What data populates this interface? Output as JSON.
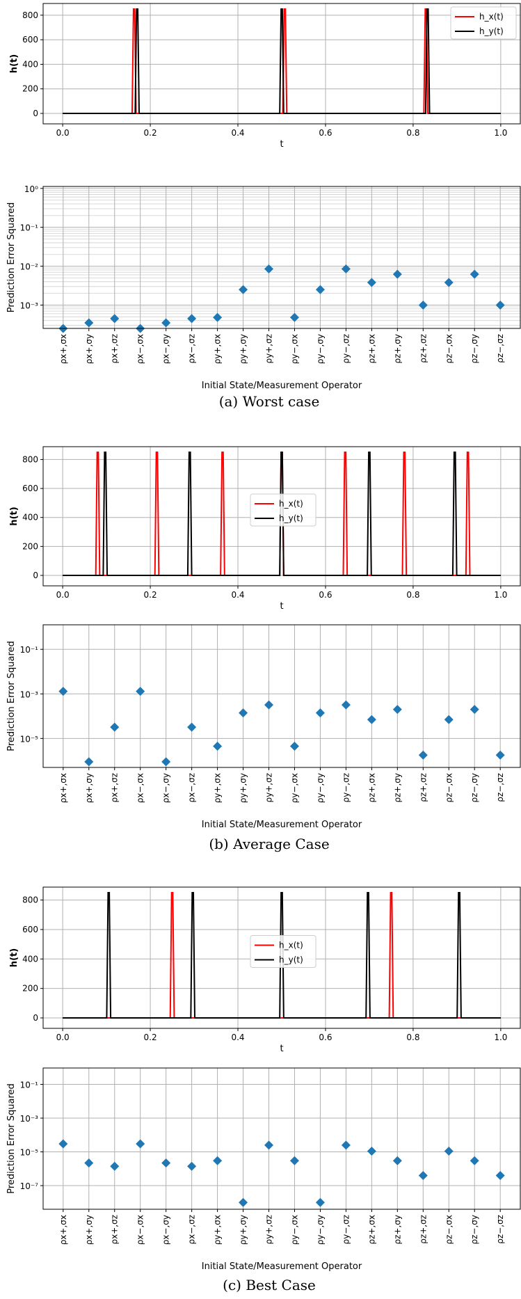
{
  "colors": {
    "hx": "#ff0000",
    "hy": "#000000",
    "marker": "#1f77b4",
    "grid": "#b0b0b0"
  },
  "captions": [
    "(a) Worst case",
    "(b) Average Case",
    "(c) Best Case"
  ],
  "operators": [
    "ρx+,σx",
    "ρx+,σy",
    "ρx+,σz",
    "ρx−,σx",
    "ρx−,σy",
    "ρx−,σz",
    "ρy+,σx",
    "ρy+,σy",
    "ρy+,σz",
    "ρy−,σx",
    "ρy−,σy",
    "ρy−,σz",
    "ρz+,σx",
    "ρz+,σy",
    "ρz+,σz",
    "ρz−,σx",
    "ρz−,σy",
    "ρz−,σz"
  ],
  "chart_data": [
    {
      "type": "line",
      "xlabel": "t",
      "ylabel": "h(t)",
      "xlim": [
        0.0,
        1.0
      ],
      "ylim": [
        0,
        850
      ],
      "xticks": [
        "0.0",
        "0.2",
        "0.4",
        "0.6",
        "0.8",
        "1.0"
      ],
      "yticks": [
        "0",
        "200",
        "400",
        "600",
        "800"
      ],
      "legend": "top-right",
      "series": [
        {
          "name": "h_x(t)",
          "peaks": [
            0.163,
            0.507,
            0.829
          ],
          "peak_value": 850
        },
        {
          "name": "h_y(t)",
          "peaks": [
            0.17,
            0.5,
            0.833
          ],
          "peak_value": 850
        }
      ]
    },
    {
      "type": "scatter",
      "xlabel": "Initial State/Measurement Operator",
      "ylabel": "Prediction Error Squared",
      "yscale": "log",
      "ylim_exp": [
        -3.6,
        0.05
      ],
      "yticks": [
        "10⁻³",
        "10⁻²",
        "10⁻¹",
        "10⁰"
      ],
      "ytick_exps": [
        -3,
        -2,
        -1,
        0
      ],
      "minor_grid": true,
      "values": [
        0.00025,
        0.00035,
        0.00045,
        0.00025,
        0.00035,
        0.00045,
        0.00048,
        0.0025,
        0.0085,
        0.00048,
        0.0025,
        0.0085,
        0.0038,
        0.0062,
        0.001,
        0.0038,
        0.0062,
        0.001
      ]
    },
    {
      "type": "line",
      "xlabel": "t",
      "ylabel": "h(t)",
      "xlim": [
        0.0,
        1.0
      ],
      "ylim": [
        0,
        850
      ],
      "xticks": [
        "0.0",
        "0.2",
        "0.4",
        "0.6",
        "0.8",
        "1.0"
      ],
      "yticks": [
        "0",
        "200",
        "400",
        "600",
        "800"
      ],
      "legend": "center",
      "series": [
        {
          "name": "h_x(t)",
          "peaks": [
            0.08,
            0.215,
            0.365,
            0.5,
            0.645,
            0.78,
            0.925
          ],
          "peak_value": 850
        },
        {
          "name": "h_y(t)",
          "peaks": [
            0.097,
            0.29,
            0.5,
            0.7,
            0.895
          ],
          "peak_value": 850
        }
      ]
    },
    {
      "type": "scatter",
      "xlabel": "Initial State/Measurement Operator",
      "ylabel": "Prediction Error Squared",
      "yscale": "log",
      "ylim_exp": [
        -6.3,
        0.1
      ],
      "yticks": [
        "10⁻⁵",
        "10⁻³",
        "10⁻¹"
      ],
      "ytick_exps": [
        -5,
        -3,
        -1
      ],
      "minor_grid": false,
      "values": [
        0.0013,
        9e-07,
        3.2e-05,
        0.0013,
        9e-07,
        3.2e-05,
        4.5e-06,
        0.00014,
        0.00032,
        4.5e-06,
        0.00014,
        0.00032,
        7e-05,
        0.0002,
        1.8e-06,
        7e-05,
        0.0002,
        1.8e-06
      ]
    },
    {
      "type": "line",
      "xlabel": "t",
      "ylabel": "h(t)",
      "xlim": [
        0.0,
        1.0
      ],
      "ylim": [
        0,
        850
      ],
      "xticks": [
        "0.0",
        "0.2",
        "0.4",
        "0.6",
        "0.8",
        "1.0"
      ],
      "yticks": [
        "0",
        "200",
        "400",
        "600",
        "800"
      ],
      "legend": "center",
      "series": [
        {
          "name": "h_x(t)",
          "peaks": [
            0.25,
            0.75
          ],
          "peak_value": 850
        },
        {
          "name": "h_y(t)",
          "peaks": [
            0.105,
            0.297,
            0.5,
            0.697,
            0.905
          ],
          "peak_value": 850
        }
      ]
    },
    {
      "type": "scatter",
      "xlabel": "Initial State/Measurement Operator",
      "ylabel": "Prediction Error Squared",
      "yscale": "log",
      "ylim_exp": [
        -8.4,
        -0.03
      ],
      "yticks": [
        "10⁻⁷",
        "10⁻⁵",
        "10⁻³",
        "10⁻¹"
      ],
      "ytick_exps": [
        -7,
        -5,
        -3,
        -1
      ],
      "minor_grid": false,
      "values": [
        3e-05,
        2.2e-06,
        1.4e-06,
        3e-05,
        2.2e-06,
        1.4e-06,
        3e-06,
        1e-08,
        2.5e-05,
        3e-06,
        1e-08,
        2.5e-05,
        1.1e-05,
        3e-06,
        4e-07,
        1.1e-05,
        3e-06,
        4e-07
      ]
    }
  ]
}
